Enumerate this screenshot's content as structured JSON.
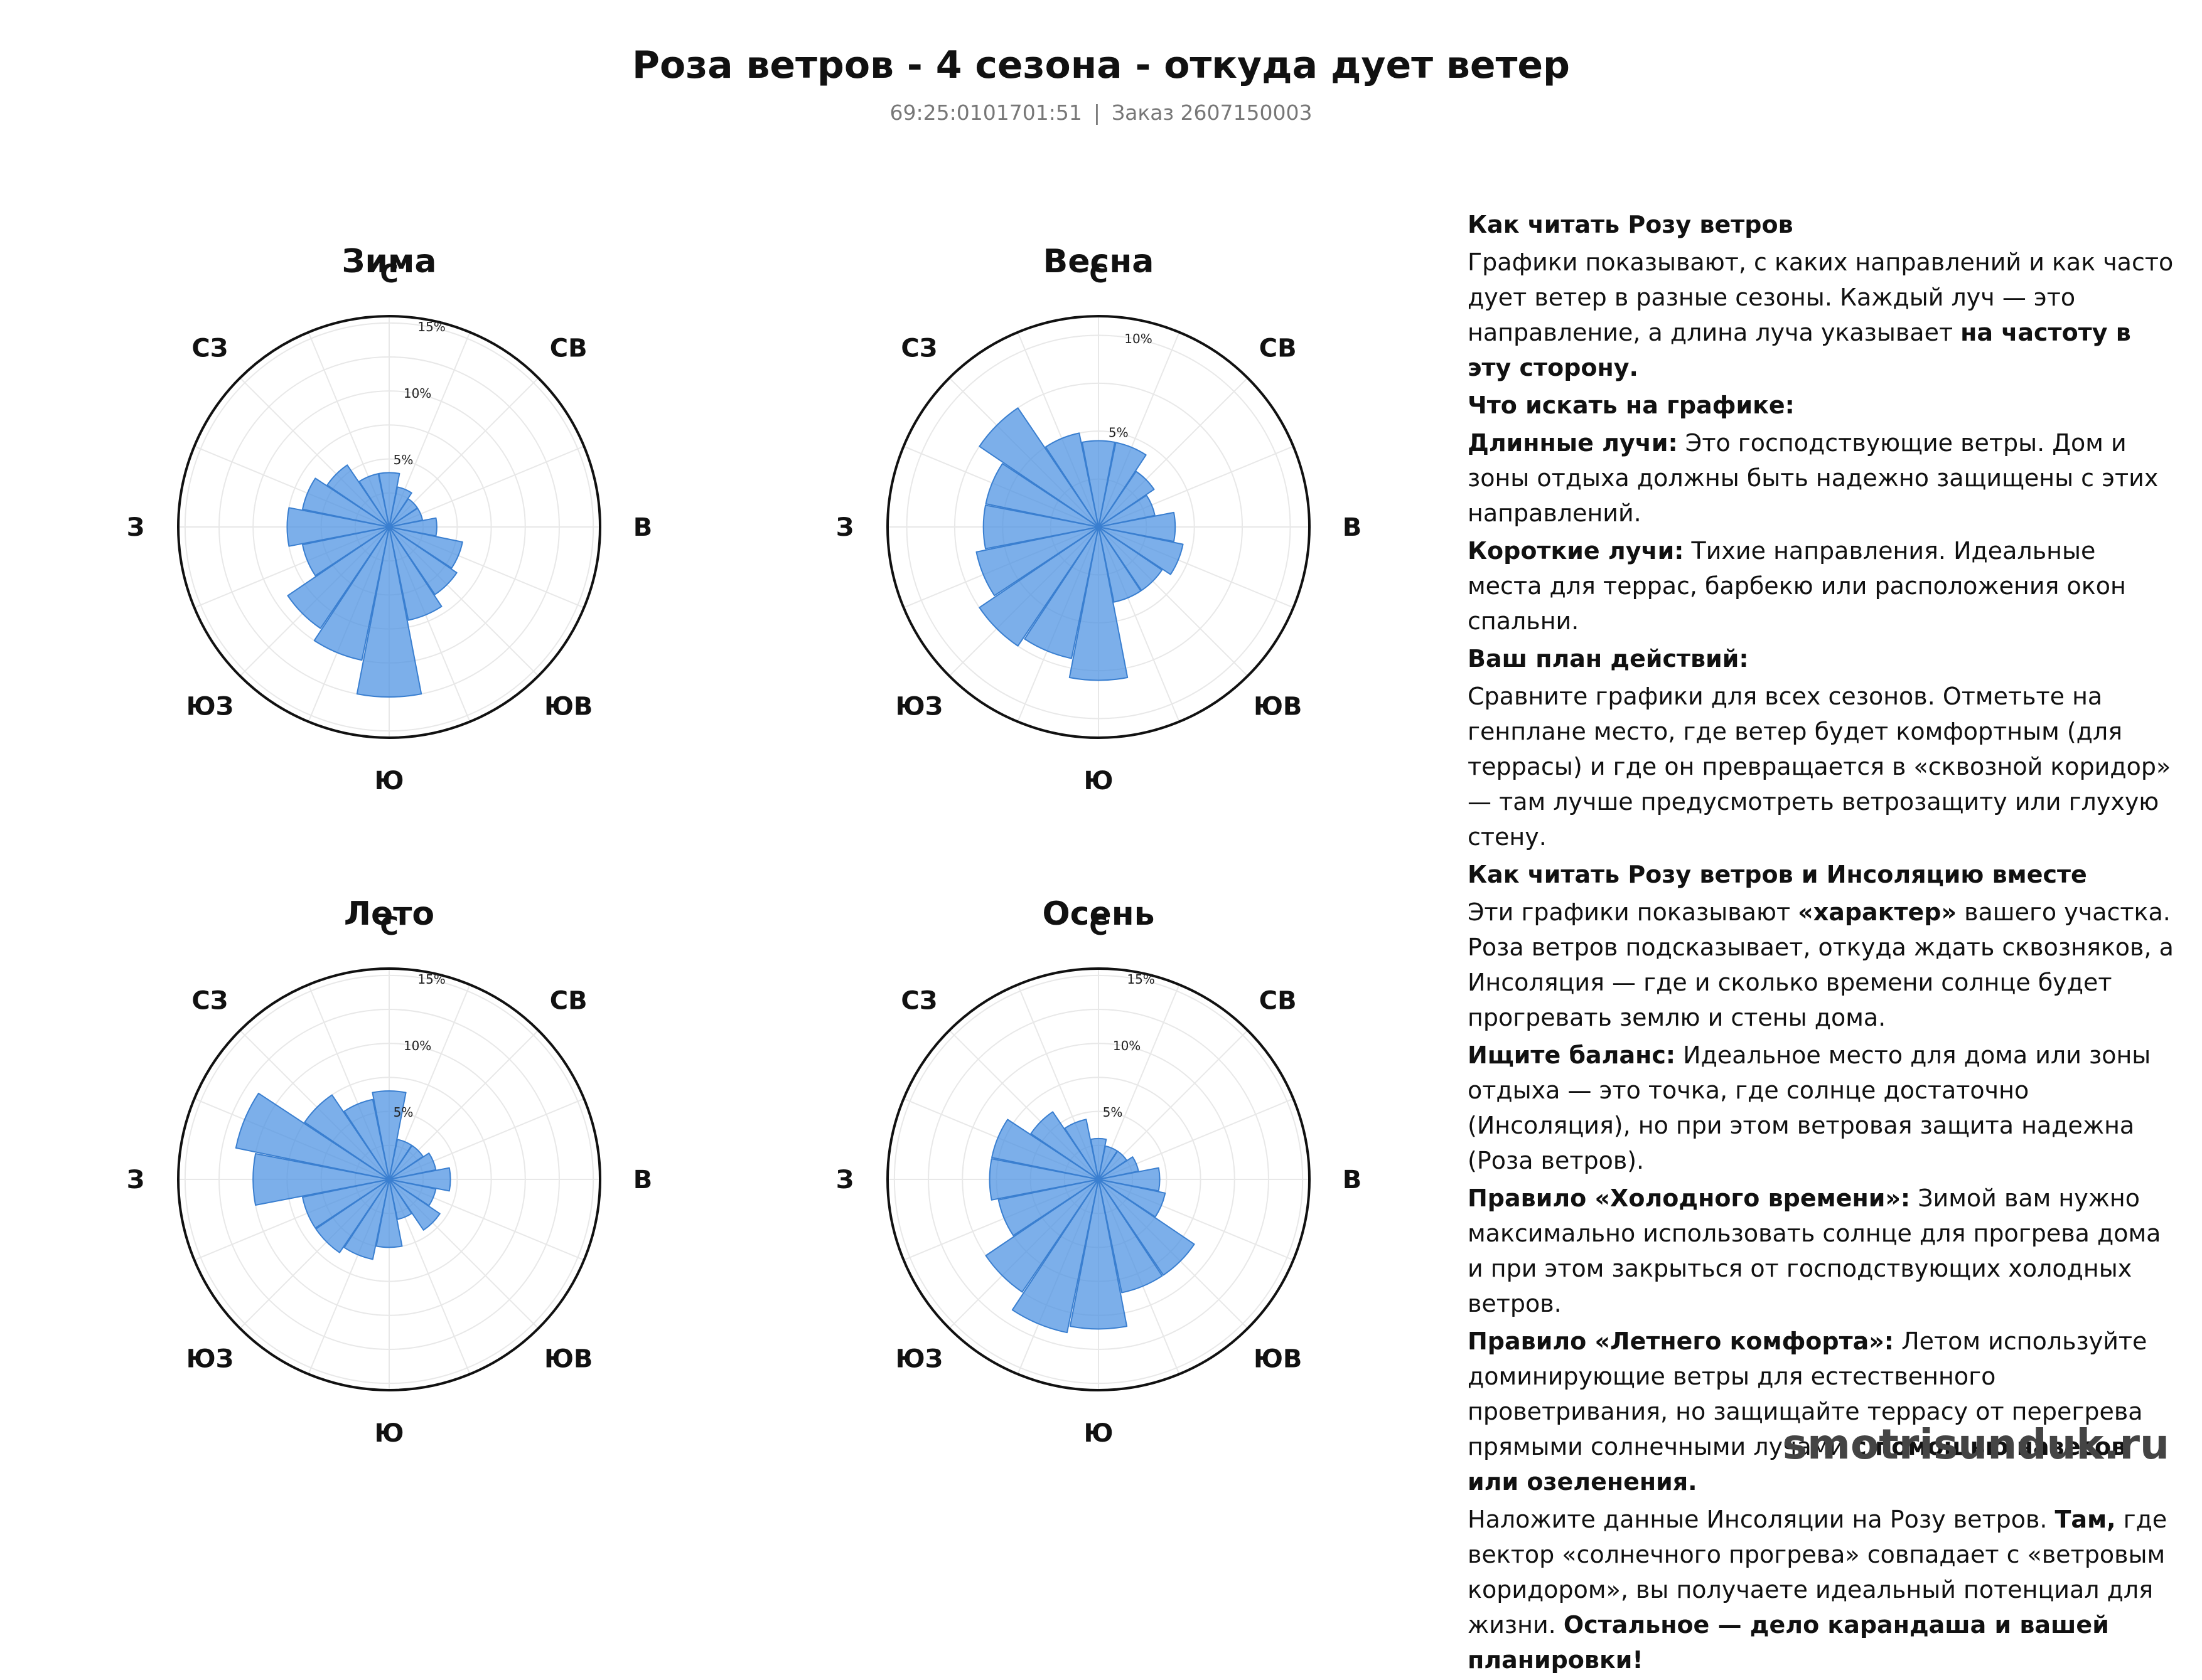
{
  "title": "Роза ветров - 4 сезона - откуда дует ветер",
  "subtitle": {
    "cadastral": "69:25:0101701:51",
    "separator": "|",
    "order": "Заказ 2607150003"
  },
  "colors": {
    "petal_fill": "#4a90e2",
    "petal_stroke": "#3a7fd0",
    "grid": "#e8e8e8",
    "outer_ring": "#111111"
  },
  "chart_data": [
    {
      "type": "windrose",
      "title": "Зима",
      "directions": [
        "С",
        "ССВ",
        "СВ",
        "ВСВ",
        "В",
        "ВЮВ",
        "ЮВ",
        "ЮЮВ",
        "Ю",
        "ЮЮЗ",
        "ЮЗ",
        "ЗЮЗ",
        "З",
        "ЗСЗ",
        "СЗ",
        "ССЗ"
      ],
      "direction_labels": [
        "С",
        "СВ",
        "В",
        "ЮВ",
        "Ю",
        "ЮЗ",
        "З",
        "СЗ"
      ],
      "values": [
        4.0,
        3.0,
        2.5,
        2.5,
        3.5,
        5.5,
        6.0,
        7.0,
        12.5,
        10.0,
        9.0,
        6.5,
        7.5,
        6.5,
        5.5,
        4.0
      ],
      "radial_ticks": [
        5,
        10,
        15
      ],
      "radial_tick_labels": [
        "5%",
        "10%",
        "15%"
      ],
      "rmax": 15.5
    },
    {
      "type": "windrose",
      "title": "Весна",
      "directions": [
        "С",
        "ССВ",
        "СВ",
        "ВСВ",
        "В",
        "ВЮВ",
        "ЮВ",
        "ЮЮВ",
        "Ю",
        "ЮЮЗ",
        "ЮЗ",
        "ЗЮЗ",
        "З",
        "ЗСЗ",
        "СЗ",
        "ССЗ"
      ],
      "direction_labels": [
        "С",
        "СВ",
        "В",
        "ЮВ",
        "Ю",
        "ЮЗ",
        "З",
        "СЗ"
      ],
      "values": [
        4.5,
        4.5,
        3.5,
        3.0,
        4.0,
        4.5,
        4.0,
        4.0,
        8.0,
        7.0,
        7.5,
        6.5,
        6.0,
        6.0,
        7.5,
        5.0
      ],
      "radial_ticks": [
        5,
        10
      ],
      "radial_tick_labels": [
        "5%",
        "10%"
      ],
      "rmax": 11
    },
    {
      "type": "windrose",
      "title": "Лето",
      "directions": [
        "С",
        "ССВ",
        "СВ",
        "ВСВ",
        "В",
        "ВЮВ",
        "ЮВ",
        "ЮЮВ",
        "Ю",
        "ЮЮЗ",
        "ЮЗ",
        "ЗЮЗ",
        "З",
        "ЗСЗ",
        "СЗ",
        "ССЗ"
      ],
      "direction_labels": [
        "С",
        "СВ",
        "В",
        "ЮВ",
        "Ю",
        "ЮЗ",
        "З",
        "СЗ"
      ],
      "values": [
        6.5,
        3.0,
        3.0,
        3.5,
        4.5,
        3.5,
        4.5,
        3.0,
        5.0,
        6.0,
        6.5,
        6.5,
        10.0,
        11.5,
        7.5,
        6.0
      ],
      "radial_ticks": [
        5,
        10,
        15
      ],
      "radial_tick_labels": [
        "5%",
        "10%",
        "15%"
      ],
      "rmax": 15.5
    },
    {
      "type": "windrose",
      "title": "Осень",
      "directions": [
        "С",
        "ССВ",
        "СВ",
        "ВСВ",
        "В",
        "ВЮВ",
        "ЮВ",
        "ЮЮВ",
        "Ю",
        "ЮЮЗ",
        "ЮЗ",
        "ЗЮЗ",
        "З",
        "ЗСЗ",
        "СЗ",
        "ССЗ"
      ],
      "direction_labels": [
        "С",
        "СВ",
        "В",
        "ЮВ",
        "Ю",
        "ЮЗ",
        "З",
        "СЗ"
      ],
      "values": [
        3.0,
        2.5,
        2.5,
        3.0,
        4.5,
        5.0,
        8.5,
        8.5,
        11.0,
        11.5,
        10.0,
        7.5,
        8.0,
        8.0,
        6.0,
        4.5
      ],
      "radial_ticks": [
        5,
        10,
        15
      ],
      "radial_tick_labels": [
        "5%",
        "10%",
        "15%"
      ],
      "rmax": 15.5
    }
  ],
  "legend": {
    "h1": "Как читать Розу ветров",
    "p1": {
      "a": "Графики показывают, с каких направлений и как часто дует ветер в разные сезоны. Каждый луч — это направление, а длина луча указывает ",
      "b": "на частоту в эту сторону."
    },
    "h2": "Что искать на графике:",
    "p2": {
      "b": "Длинные лучи:",
      "a": " Это господствующие ветры. Дом и зоны отдыха должны быть надежно защищены с этих направлений."
    },
    "p3": {
      "b": "Короткие лучи:",
      "a": " Тихие направления. Идеальные места для террас, барбекю или расположения окон спальни."
    },
    "h3": "Ваш план действий:",
    "p4": "Сравните графики для всех сезонов. Отметьте на генплане место, где ветер будет комфортным (для террасы) и где он превращается в «сквозной коридор» — там лучше предусмотреть ветрозащиту или глухую стену.",
    "h4": "Как читать Розу ветров и Инсоляцию вместе",
    "p5": {
      "a": "Эти графики показывают ",
      "b": "«характер»",
      "c": " вашего участка. Роза ветров подсказывает, откуда ждать сквозняков, а Инсоляция — где и сколько времени солнце будет прогревать землю и стены дома."
    },
    "p6": {
      "b": "Ищите баланс:",
      "a": " Идеальное место для дома или зоны отдыха — это точка, где солнце достаточно (Инсоляция), но при этом ветровая защита надежна (Роза ветров)."
    },
    "p7": {
      "b": "Правило «Холодного времени»:",
      "a": " Зимой вам нужно максимально использовать солнце для прогрева дома и при этом закрыться от господствующих холодных ветров."
    },
    "p8": {
      "b": "Правило «Летнего комфорта»:",
      "a": " Летом используйте доминирующие ветры для естественного проветривания, но защищайте террасу от перегрева прямыми солнечными лучами ",
      "c": "с помощью навесов или озеленения."
    },
    "p9": {
      "a": "Наложите данные Инсоляции на Розу ветров. ",
      "b": "Там,",
      "c": " где вектор «солнечного прогрева» совпадает с «ветровым коридором», вы получаете идеальный потенциал для жизни. ",
      "d": "Остальное — дело карандаша и вашей планировки!"
    }
  },
  "watermark": "smotrisunduk.ru"
}
